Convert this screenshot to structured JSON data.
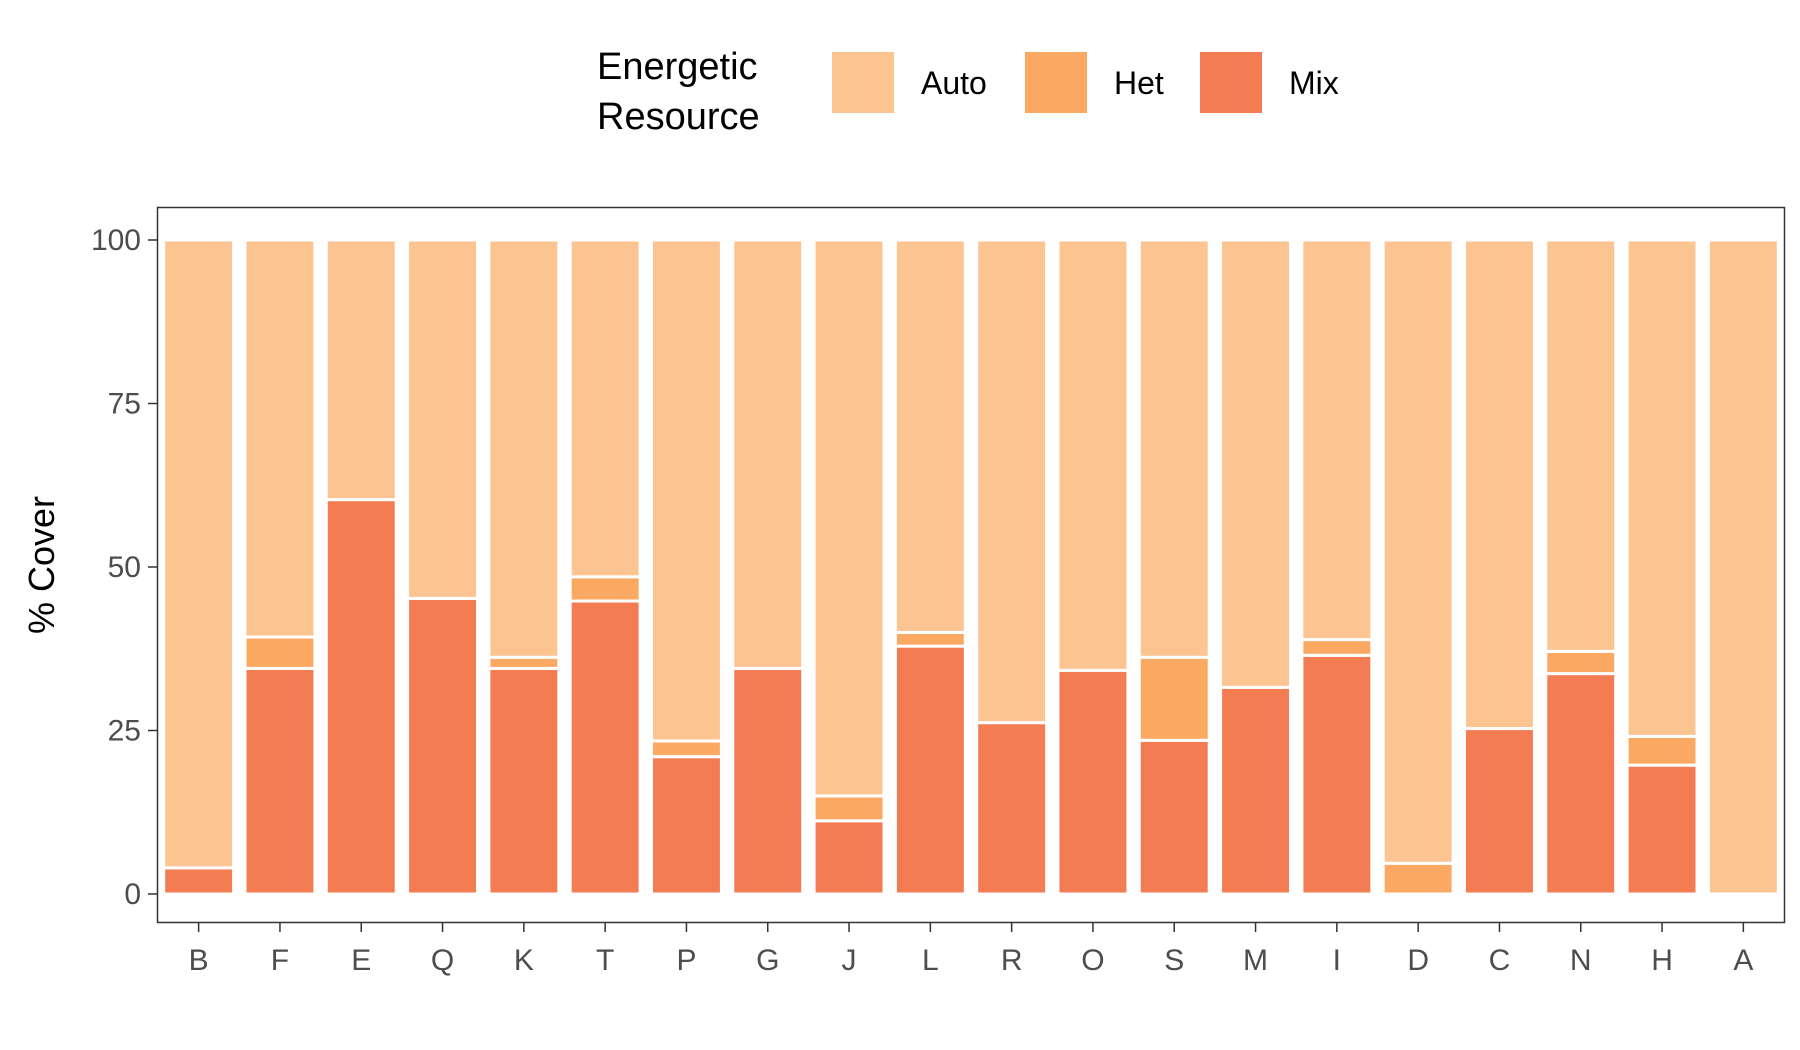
{
  "chart_data": {
    "type": "bar",
    "stacked": true,
    "title": "",
    "xlabel": "",
    "ylabel": "% Cover",
    "ylim": [
      0,
      100
    ],
    "yticks": [
      0,
      25,
      50,
      75,
      100
    ],
    "grid": false,
    "legend": {
      "title_lines": [
        "Energetic",
        "Resource"
      ],
      "placement": "top"
    },
    "categories": [
      "B",
      "F",
      "E",
      "Q",
      "K",
      "T",
      "P",
      "G",
      "J",
      "L",
      "R",
      "O",
      "S",
      "M",
      "I",
      "D",
      "C",
      "N",
      "H",
      "A"
    ],
    "series": [
      {
        "name": "Mix",
        "color": "#F47C52",
        "values": [
          4,
          34.5,
          60.3,
          45.2,
          34.5,
          44.8,
          21,
          34.5,
          11.2,
          37.9,
          26.2,
          34.2,
          23.5,
          31.6,
          36.5,
          0,
          25.3,
          33.7,
          19.7,
          0
        ]
      },
      {
        "name": "Het",
        "color": "#FBA962",
        "values": [
          0,
          4.8,
          0,
          0,
          1.7,
          3.7,
          2.4,
          0,
          3.8,
          2.1,
          0,
          0,
          12.7,
          0,
          2.4,
          4.7,
          0,
          3.4,
          4.4,
          0
        ]
      },
      {
        "name": "Auto",
        "color": "#FBC491",
        "values": [
          96,
          60.7,
          39.7,
          54.8,
          63.8,
          51.5,
          76.6,
          65.5,
          85,
          60,
          73.8,
          65.8,
          63.8,
          68.4,
          61.1,
          95.3,
          74.7,
          62.9,
          75.9,
          100
        ]
      }
    ]
  }
}
